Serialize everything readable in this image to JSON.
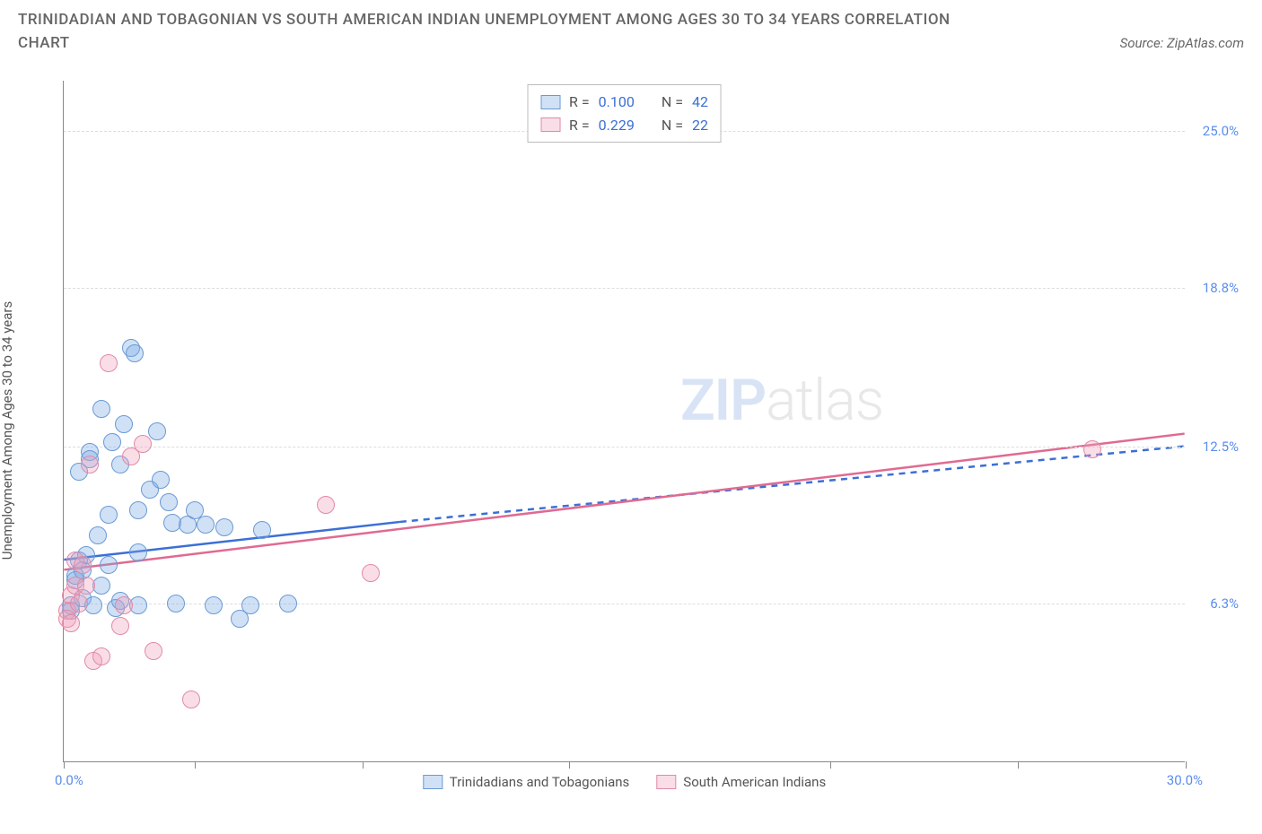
{
  "title": "TRINIDADIAN AND TOBAGONIAN VS SOUTH AMERICAN INDIAN UNEMPLOYMENT AMONG AGES 30 TO 34 YEARS CORRELATION CHART",
  "source": "Source: ZipAtlas.com",
  "watermark_a": "ZIP",
  "watermark_b": "atlas",
  "chart": {
    "type": "scatter",
    "ylabel": "Unemployment Among Ages 30 to 34 years",
    "xlim": [
      0,
      30
    ],
    "ylim": [
      0,
      27
    ],
    "xmin_label": "0.0%",
    "xmax_label": "30.0%",
    "xtick_positions": [
      0,
      3.5,
      8.0,
      13.5,
      20.5,
      25.5,
      30.0
    ],
    "yticks": [
      {
        "v": 6.3,
        "label": "6.3%"
      },
      {
        "v": 12.5,
        "label": "12.5%"
      },
      {
        "v": 18.8,
        "label": "18.8%"
      },
      {
        "v": 25.0,
        "label": "25.0%"
      }
    ],
    "background_color": "#ffffff",
    "grid_color": "#dddddd",
    "axis_color": "#888888",
    "series": [
      {
        "name": "Trinidadians and Tobagonians",
        "key": "blue",
        "fill": "rgba(120,170,230,0.35)",
        "stroke": "#6a9ad4",
        "line_color": "#3b6fd6",
        "R": "0.100",
        "N": "42",
        "marker_r": 10,
        "solid_line": {
          "x1": 0,
          "y1": 8.0,
          "x2": 9.0,
          "y2": 9.5
        },
        "dash_line": {
          "x1": 9.0,
          "y1": 9.5,
          "x2": 30.0,
          "y2": 12.5
        },
        "points": [
          [
            0.2,
            6.2
          ],
          [
            0.2,
            6.0
          ],
          [
            0.3,
            7.2
          ],
          [
            0.3,
            7.4
          ],
          [
            0.4,
            8.0
          ],
          [
            0.4,
            11.5
          ],
          [
            0.5,
            6.5
          ],
          [
            0.5,
            7.6
          ],
          [
            0.6,
            8.2
          ],
          [
            0.7,
            12.3
          ],
          [
            0.7,
            12.0
          ],
          [
            0.8,
            6.2
          ],
          [
            0.9,
            9.0
          ],
          [
            1.0,
            7.0
          ],
          [
            1.0,
            14.0
          ],
          [
            1.2,
            7.8
          ],
          [
            1.2,
            9.8
          ],
          [
            1.3,
            12.7
          ],
          [
            1.4,
            6.1
          ],
          [
            1.5,
            11.8
          ],
          [
            1.5,
            6.4
          ],
          [
            1.6,
            13.4
          ],
          [
            1.8,
            16.4
          ],
          [
            1.9,
            16.2
          ],
          [
            2.0,
            8.3
          ],
          [
            2.0,
            10.0
          ],
          [
            2.0,
            6.2
          ],
          [
            2.3,
            10.8
          ],
          [
            2.5,
            13.1
          ],
          [
            2.6,
            11.2
          ],
          [
            2.8,
            10.3
          ],
          [
            2.9,
            9.5
          ],
          [
            3.0,
            6.3
          ],
          [
            3.3,
            9.4
          ],
          [
            3.5,
            10.0
          ],
          [
            3.8,
            9.4
          ],
          [
            4.0,
            6.2
          ],
          [
            4.3,
            9.3
          ],
          [
            4.7,
            5.7
          ],
          [
            5.0,
            6.2
          ],
          [
            5.3,
            9.2
          ],
          [
            6.0,
            6.3
          ]
        ]
      },
      {
        "name": "South American Indians",
        "key": "pink",
        "fill": "rgba(240,160,185,0.35)",
        "stroke": "#e28aa5",
        "line_color": "#e06a90",
        "R": "0.229",
        "N": "22",
        "marker_r": 10,
        "solid_line": {
          "x1": 0,
          "y1": 7.6,
          "x2": 30.0,
          "y2": 13.0
        },
        "dash_line": null,
        "points": [
          [
            0.1,
            6.0
          ],
          [
            0.1,
            5.7
          ],
          [
            0.2,
            5.5
          ],
          [
            0.2,
            6.6
          ],
          [
            0.3,
            7.0
          ],
          [
            0.3,
            8.0
          ],
          [
            0.4,
            6.3
          ],
          [
            0.5,
            7.8
          ],
          [
            0.6,
            7.0
          ],
          [
            0.7,
            11.8
          ],
          [
            0.8,
            4.0
          ],
          [
            1.0,
            4.2
          ],
          [
            1.2,
            15.8
          ],
          [
            1.5,
            5.4
          ],
          [
            1.6,
            6.2
          ],
          [
            1.8,
            12.1
          ],
          [
            2.1,
            12.6
          ],
          [
            2.4,
            4.4
          ],
          [
            3.4,
            2.5
          ],
          [
            7.0,
            10.2
          ],
          [
            8.2,
            7.5
          ],
          [
            27.5,
            12.4
          ]
        ]
      }
    ],
    "legend_top_labels": {
      "R": "R =",
      "N": "N ="
    }
  }
}
